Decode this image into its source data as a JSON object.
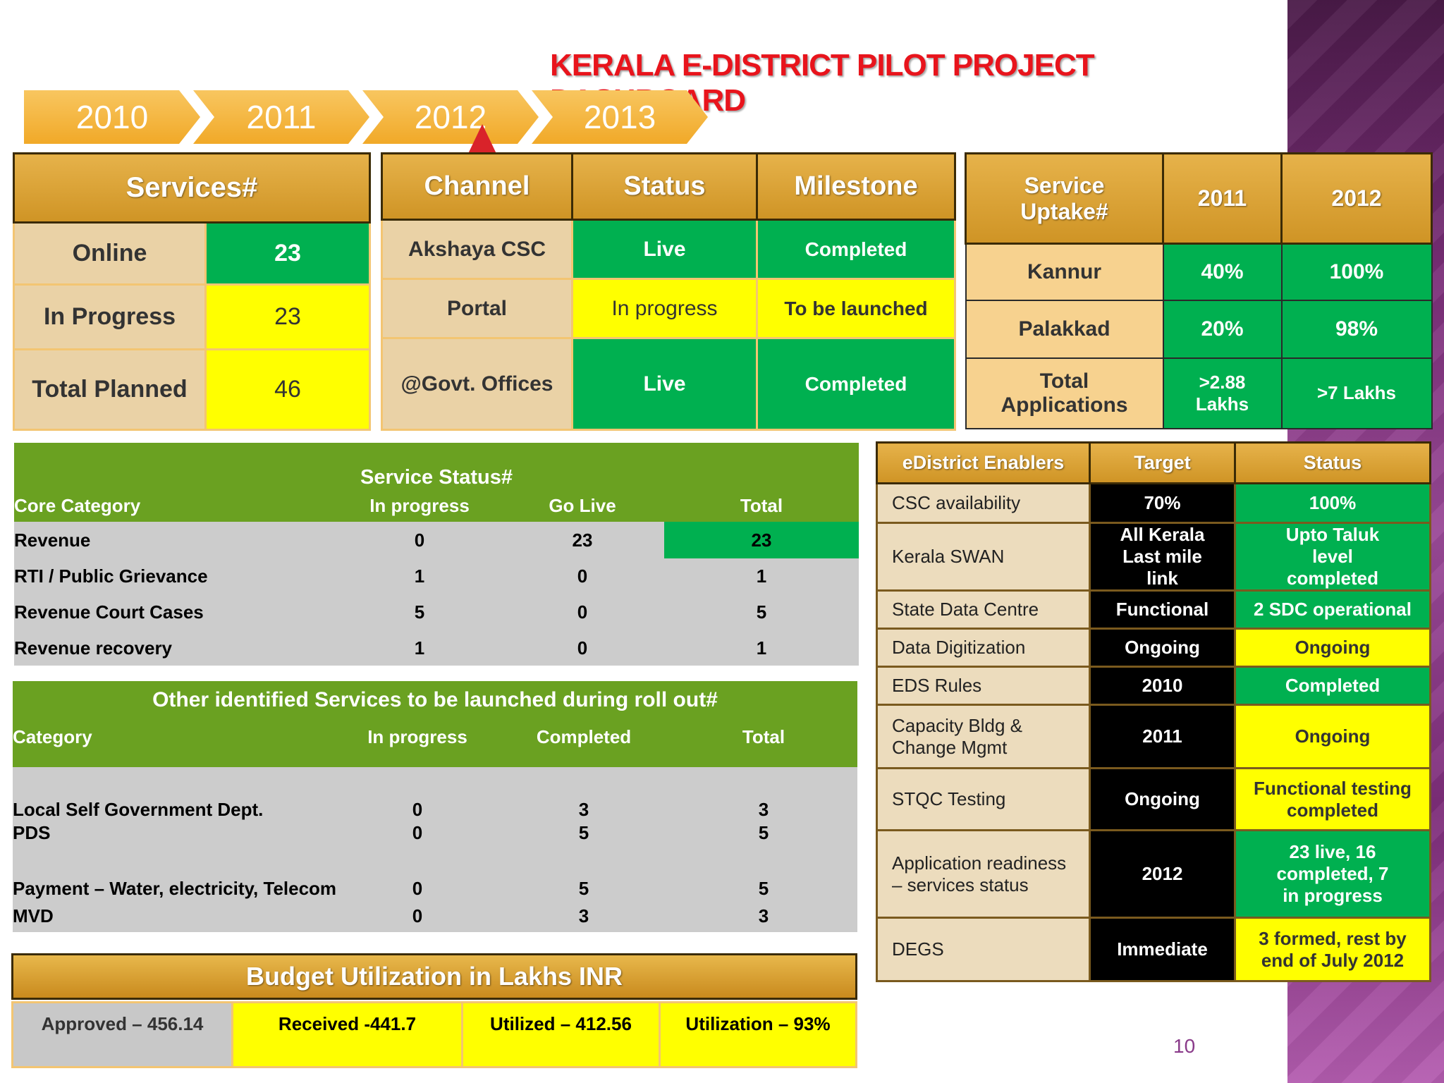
{
  "title": "KERALA E-DISTRICT PILOT PROJECT DASHBOARD",
  "timeline": {
    "years": [
      "2010",
      "2011",
      "2012",
      "2013"
    ]
  },
  "services": {
    "header": "Services#",
    "rows": [
      {
        "label": "Online",
        "value": "23"
      },
      {
        "label": "In Progress",
        "value": "23"
      },
      {
        "label": "Total Planned",
        "value": "46"
      }
    ]
  },
  "channel": {
    "headers": [
      "Channel",
      "Status",
      "Milestone"
    ],
    "rows": [
      {
        "channel": "Akshaya CSC",
        "status": "Live",
        "milestone": "Completed"
      },
      {
        "channel": "Portal",
        "status": "In progress",
        "milestone": "To be launched"
      },
      {
        "channel": "@Govt. Offices",
        "status": "Live",
        "milestone": "Completed"
      }
    ]
  },
  "uptake": {
    "headers": [
      "Service Uptake#",
      "2011",
      "2012"
    ],
    "rows": [
      {
        "label": "Kannur",
        "y2011": "40%",
        "y2012": "100%"
      },
      {
        "label": "Palakkad",
        "y2011": "20%",
        "y2012": "98%"
      },
      {
        "label": "Total Applications",
        "y2011": ">2.88 Lakhs",
        "y2012": ">7 Lakhs"
      }
    ]
  },
  "service_status": {
    "title": "Service Status#",
    "headers": [
      "Core Category",
      "In progress",
      "Go Live",
      "Total"
    ],
    "rows": [
      {
        "category": "Revenue",
        "in_progress": "0",
        "go_live": "23",
        "total": "23"
      },
      {
        "category": "RTI / Public Grievance",
        "in_progress": "1",
        "go_live": "0",
        "total": "1"
      },
      {
        "category": "Revenue Court Cases",
        "in_progress": "5",
        "go_live": "0",
        "total": "5"
      },
      {
        "category": "Revenue recovery",
        "in_progress": "1",
        "go_live": "0",
        "total": "1"
      }
    ]
  },
  "other_services": {
    "title": "Other identified Services to be launched during roll out#",
    "headers": [
      "Category",
      "In progress",
      "Completed",
      "Total"
    ],
    "rows": [
      {
        "category": "Local Self Government Dept.",
        "in_progress": "0",
        "completed": "3",
        "total": "3"
      },
      {
        "category": "PDS",
        "in_progress": "0",
        "completed": "5",
        "total": "5"
      },
      {
        "category": "Payment – Water, electricity, Telecom",
        "in_progress": "0",
        "completed": "5",
        "total": "5"
      },
      {
        "category": "MVD",
        "in_progress": "0",
        "completed": "3",
        "total": "3"
      }
    ]
  },
  "enablers": {
    "headers": [
      "eDistrict Enablers",
      "Target",
      "Status"
    ],
    "rows": [
      {
        "label": "CSC availability",
        "target": "70%",
        "status": "100%",
        "status_color": "green"
      },
      {
        "label": "Kerala  SWAN",
        "target": "All Kerala Last mile link",
        "status": "Upto Taluk level completed",
        "status_color": "green"
      },
      {
        "label": "State Data Centre",
        "target": "Functional",
        "status": "2 SDC operational",
        "status_color": "green"
      },
      {
        "label": "Data Digitization",
        "target": "Ongoing",
        "status": "Ongoing",
        "status_color": "yellow"
      },
      {
        "label": "EDS Rules",
        "target": "2010",
        "status": "Completed",
        "status_color": "green"
      },
      {
        "label": "Capacity Bldg & Change Mgmt",
        "target": "2011",
        "status": "Ongoing",
        "status_color": "yellow"
      },
      {
        "label": "STQC Testing",
        "target": "Ongoing",
        "status": "Functional testing completed",
        "status_color": "yellow"
      },
      {
        "label": "Application readiness – services status",
        "target": "2012",
        "status": "23 live, 16 completed, 7 in progress",
        "status_color": "green"
      },
      {
        "label": "DEGS",
        "target": "Immediate",
        "status": "3 formed, rest by end of July 2012",
        "status_color": "yellow"
      }
    ]
  },
  "budget": {
    "title": "Budget Utilization in Lakhs INR",
    "approved": "Approved – 456.14",
    "received": "Received -441.7",
    "utilized": "Utilized – 412.56",
    "utilization": "Utilization – 93%"
  },
  "page_number": "10",
  "colors": {
    "title_red": "#e8141c",
    "green": "#00b050",
    "yellow": "#ffff00",
    "band_green": "#6aa121",
    "gold": "#d89c2c"
  }
}
